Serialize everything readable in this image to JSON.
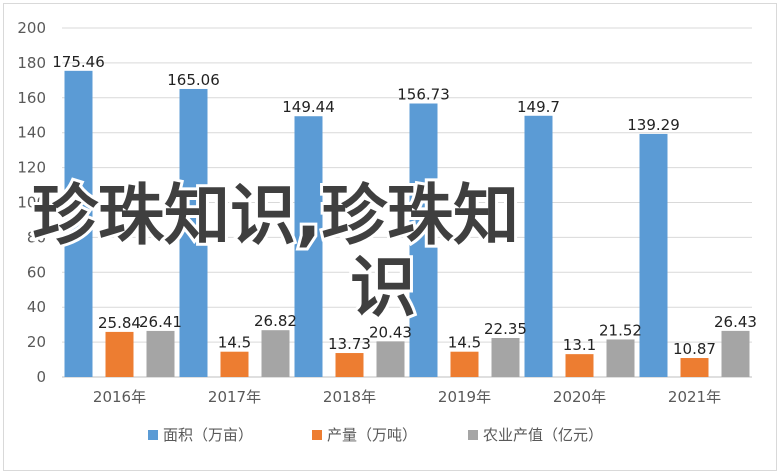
{
  "chart_data": {
    "type": "bar",
    "categories": [
      "2016年",
      "2017年",
      "2018年",
      "2019年",
      "2020年",
      "2021年"
    ],
    "series": [
      {
        "name": "面积（万亩）",
        "values": [
          175.46,
          165.06,
          149.44,
          156.73,
          149.7,
          139.29
        ],
        "color": "#5b9bd5"
      },
      {
        "name": "产量（万吨）",
        "values": [
          25.84,
          14.5,
          13.73,
          14.5,
          13.1,
          10.87
        ],
        "color": "#ed7d31"
      },
      {
        "name": "农业产值（亿元）",
        "values": [
          26.41,
          26.82,
          20.43,
          22.35,
          21.52,
          26.43
        ],
        "color": "#a5a5a5"
      }
    ],
    "data_labels": [
      [
        "175.46",
        "165.06",
        "149.44",
        "156.73",
        "149.7",
        "139.29"
      ],
      [
        "25.84",
        "14.5",
        "13.73",
        "14.5",
        "13.1",
        "10.87"
      ],
      [
        "26.41",
        "26.82",
        "20.43",
        "22.35",
        "21.52",
        "26.43"
      ]
    ],
    "y_ticks": [
      "0",
      "20",
      "40",
      "60",
      "80",
      "100",
      "120",
      "140",
      "160",
      "180",
      "200"
    ],
    "ylim": [
      0,
      200
    ],
    "grid": true,
    "legend_position": "bottom",
    "title": "",
    "xlabel": "",
    "ylabel": ""
  },
  "watermark": {
    "line1": "珍珠知识,珍珠知",
    "line2": "识"
  }
}
